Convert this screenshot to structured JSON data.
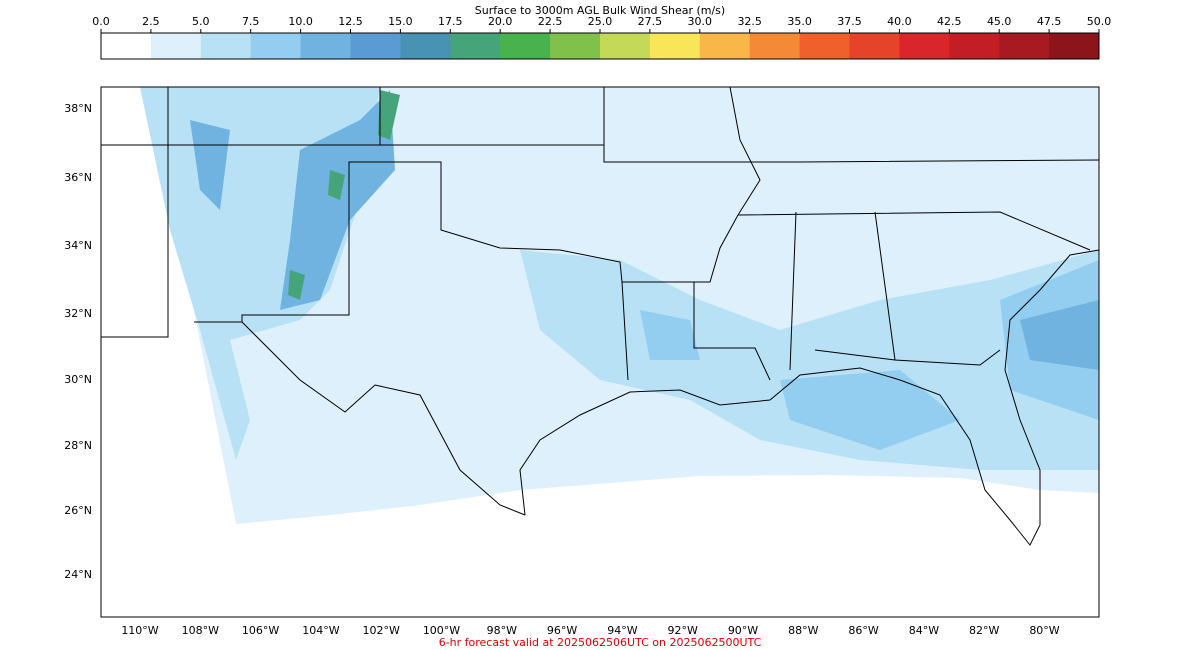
{
  "colorbar": {
    "title": "Surface to 3000m AGL Bulk Wind Shear (m/s)",
    "lim": [
      0,
      50
    ],
    "ticks": [
      {
        "value": 0,
        "label": "0.0"
      },
      2.5,
      {
        "value": 5,
        "label": "5.0"
      },
      7.5,
      {
        "value": 10,
        "label": "10.0"
      },
      12.5,
      {
        "value": 15,
        "label": "15.0"
      },
      17.5,
      {
        "value": 20,
        "label": "20.0"
      },
      22.5,
      {
        "value": 25,
        "label": "25.0"
      },
      27.5,
      {
        "value": 30,
        "label": "30.0"
      },
      32.5,
      {
        "value": 35,
        "label": "35.0"
      },
      37.5,
      {
        "value": 40,
        "label": "40.0"
      },
      42.5,
      {
        "value": 45,
        "label": "45.0"
      },
      47.5,
      {
        "value": 50,
        "label": "50.0"
      }
    ],
    "colors": [
      "#ffffff",
      "#ddf0fc",
      "#b8e1f6",
      "#93cdf0",
      "#71b3e0",
      "#5b9bd5",
      "#4893b3",
      "#46a47a",
      "#48b34c",
      "#7fc14a",
      "#c3d957",
      "#f8e558",
      "#f8b747",
      "#f48a35",
      "#f0602a",
      "#e6432b",
      "#d9262a",
      "#c31d26",
      "#a81a22",
      "#8c151c"
    ]
  },
  "map": {
    "lat_labels": [
      "38°N",
      "36°N",
      "34°N",
      "32°N",
      "30°N",
      "28°N",
      "26°N",
      "24°N"
    ],
    "lon_labels": [
      "110°W",
      "108°W",
      "106°W",
      "104°W",
      "102°W",
      "100°W",
      "98°W",
      "96°W",
      "94°W",
      "92°W",
      "90°W",
      "88°W",
      "86°W",
      "84°W",
      "82°W",
      "80°W"
    ]
  },
  "footer": "6-hr forecast valid at 2025062506UTC on 2025062500UTC"
}
